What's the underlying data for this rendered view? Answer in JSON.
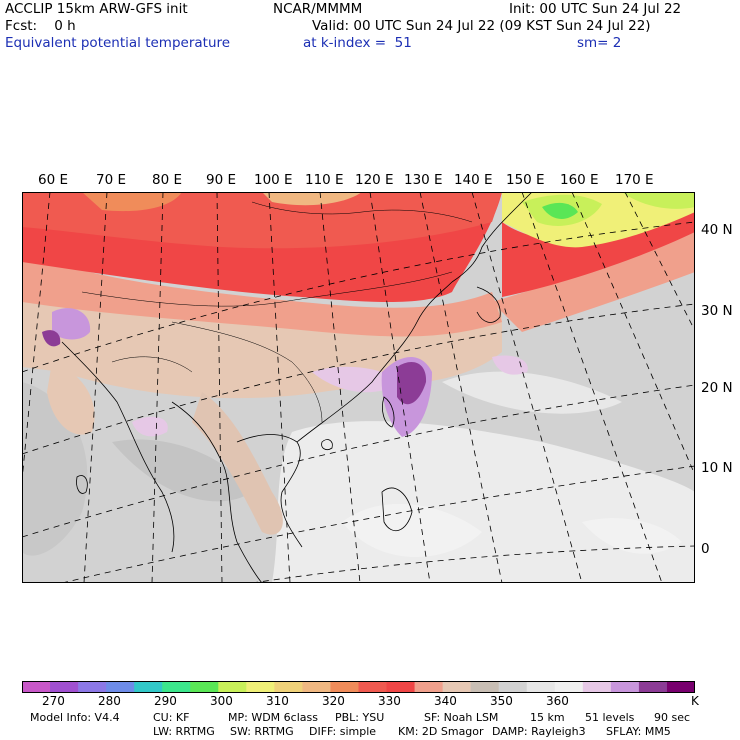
{
  "header": {
    "model": "ACCLIP 15km ARW-GFS init",
    "center": "NCAR/MMMM",
    "init": "Init: 00 UTC Sun 24 Jul 22",
    "fcst": "Fcst:    0 h",
    "valid": "Valid: 00 UTC Sun 24 Jul 22 (09 KST Sun 24 Jul 22)",
    "field": "Equivalent potential temperature",
    "level": "at k-index =  51",
    "smoothing": "sm= 2"
  },
  "map": {
    "lon_labels": [
      "60 E",
      "70 E",
      "80 E",
      "90 E",
      "100 E",
      "110 E",
      "120 E",
      "130 E",
      "140 E",
      "150 E",
      "160 E",
      "170 E"
    ],
    "lat_labels": [
      "40 N",
      "30 N",
      "20 N",
      "10 N",
      "0"
    ]
  },
  "colorbar": {
    "colors": [
      "#c858c8",
      "#a050d0",
      "#8c78e6",
      "#6e8ce8",
      "#32c8c8",
      "#3ce68c",
      "#5ae656",
      "#c8f05a",
      "#f0f078",
      "#f0d27a",
      "#f0b882",
      "#f08c5a",
      "#f05a50",
      "#f04646",
      "#f0a08c",
      "#e6c8b4",
      "#c8beb4",
      "#d2d2d2",
      "#e6e6e6",
      "#f0f0f0",
      "#e6c8e6",
      "#c896dc",
      "#8c3c96",
      "#78006e"
    ],
    "ticks": [
      "270",
      "280",
      "290",
      "300",
      "310",
      "320",
      "330",
      "340",
      "350",
      "360"
    ],
    "units": "K"
  },
  "footer": {
    "line1": [
      "Model Info: V4.4",
      "CU: KF",
      "MP: WDM 6class",
      "PBL: YSU",
      "SF: Noah LSM",
      "15 km",
      "51 levels",
      "90 sec"
    ],
    "line2": [
      "LW: RRTMG",
      "SW: RRTMG",
      "DIFF: simple",
      "KM: 2D Smagor",
      "DAMP: Rayleigh3",
      "SFLAY: MM5"
    ]
  },
  "colors": {
    "title_blue": "#1c2fb4",
    "ocean_grey": "#d2d2d2",
    "warm_red": "#f04646"
  }
}
